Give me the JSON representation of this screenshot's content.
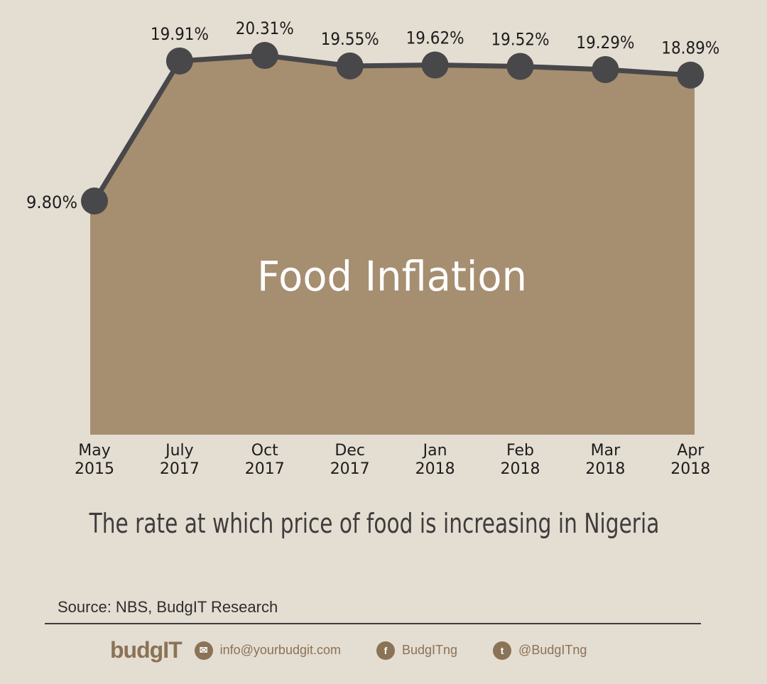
{
  "chart_data": {
    "type": "area",
    "title": "Food Inflation",
    "subtitle": "The rate at which price of food is increasing in Nigeria",
    "categories": [
      [
        "May",
        "2015"
      ],
      [
        "July",
        "2017"
      ],
      [
        "Oct",
        "2017"
      ],
      [
        "Dec",
        "2017"
      ],
      [
        "Jan",
        "2018"
      ],
      [
        "Feb",
        "2018"
      ],
      [
        "Mar",
        "2018"
      ],
      [
        "Apr",
        "2018"
      ]
    ],
    "values": [
      9.8,
      19.91,
      20.31,
      19.55,
      19.62,
      19.52,
      19.29,
      18.89
    ],
    "labels": [
      "9.80%",
      "19.91%",
      "20.31%",
      "19.55%",
      "19.62%",
      "19.52%",
      "19.29%",
      "18.89%"
    ],
    "unit": "%",
    "grid": false,
    "xlabel": "",
    "ylabel": ""
  },
  "source": "Source: NBS, BudgIT Research",
  "footer": {
    "logo": "budgIT",
    "email": "info@yourbudgit.com",
    "facebook": "BudgITng",
    "twitter": "@BudgITng"
  },
  "colors": {
    "background": "#e4ddd2",
    "fill": "#a68e70",
    "line": "#48474a",
    "brand": "#8a7356"
  }
}
